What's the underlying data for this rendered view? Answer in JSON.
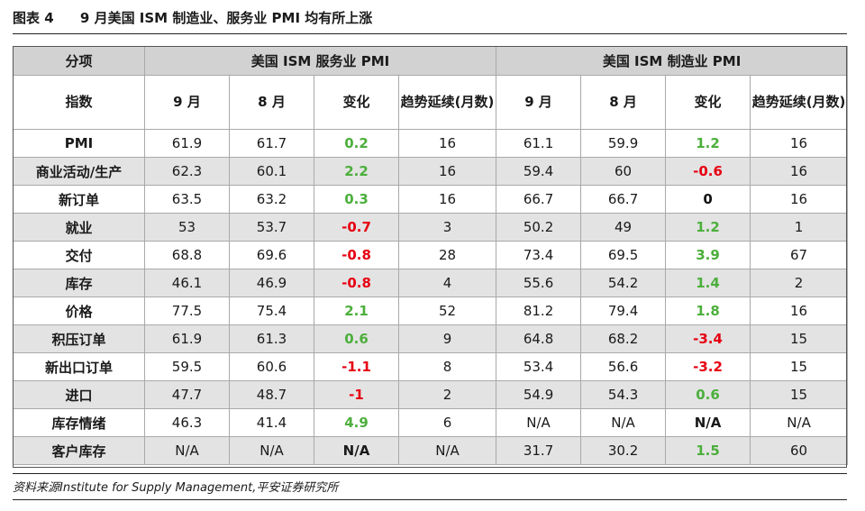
{
  "figure": {
    "label": "图表 4",
    "title": "9 月美国 ISM 制造业、服务业 PMI 均有所上涨"
  },
  "table": {
    "corner_header": "分项",
    "group_services": "美国 ISM 服务业 PMI",
    "group_manufacturing": "美国 ISM 制造业 PMI",
    "index_header": "指数",
    "col_headers": [
      "9 月",
      "8 月",
      "变化",
      "趋势延续(月数)",
      "9 月",
      "8 月",
      "变化",
      "趋势延续(月数)"
    ],
    "rows": [
      {
        "label": "PMI",
        "cells": [
          "61.9",
          "61.7",
          "0.2",
          "16",
          "61.1",
          "59.9",
          "1.2",
          "16"
        ]
      },
      {
        "label": "商业活动/生产",
        "cells": [
          "62.3",
          "60.1",
          "2.2",
          "16",
          "59.4",
          "60",
          "-0.6",
          "16"
        ]
      },
      {
        "label": "新订单",
        "cells": [
          "63.5",
          "63.2",
          "0.3",
          "16",
          "66.7",
          "66.7",
          "0",
          "16"
        ]
      },
      {
        "label": "就业",
        "cells": [
          "53",
          "53.7",
          "-0.7",
          "3",
          "50.2",
          "49",
          "1.2",
          "1"
        ]
      },
      {
        "label": "交付",
        "cells": [
          "68.8",
          "69.6",
          "-0.8",
          "28",
          "73.4",
          "69.5",
          "3.9",
          "67"
        ]
      },
      {
        "label": "库存",
        "cells": [
          "46.1",
          "46.9",
          "-0.8",
          "4",
          "55.6",
          "54.2",
          "1.4",
          "2"
        ]
      },
      {
        "label": "价格",
        "cells": [
          "77.5",
          "75.4",
          "2.1",
          "52",
          "81.2",
          "79.4",
          "1.8",
          "16"
        ]
      },
      {
        "label": "积压订单",
        "cells": [
          "61.9",
          "61.3",
          "0.6",
          "9",
          "64.8",
          "68.2",
          "-3.4",
          "15"
        ]
      },
      {
        "label": "新出口订单",
        "cells": [
          "59.5",
          "60.6",
          "-1.1",
          "8",
          "53.4",
          "56.6",
          "-3.2",
          "15"
        ]
      },
      {
        "label": "进口",
        "cells": [
          "47.7",
          "48.7",
          "-1",
          "2",
          "54.9",
          "54.3",
          "0.6",
          "15"
        ]
      },
      {
        "label": "库存情绪",
        "cells": [
          "46.3",
          "41.4",
          "4.9",
          "6",
          "N/A",
          "N/A",
          "N/A",
          "N/A"
        ]
      },
      {
        "label": "客户库存",
        "cells": [
          "N/A",
          "N/A",
          "N/A",
          "N/A",
          "31.7",
          "30.2",
          "1.5",
          "60"
        ]
      }
    ]
  },
  "source": "资料来源Institute for Supply Management,平安证券研究所",
  "colors": {
    "positive_change": "#4caf3c",
    "negative_change": "#e60012",
    "header_fill": "#d2d2d2",
    "band_fill": "#e3e3e3"
  }
}
